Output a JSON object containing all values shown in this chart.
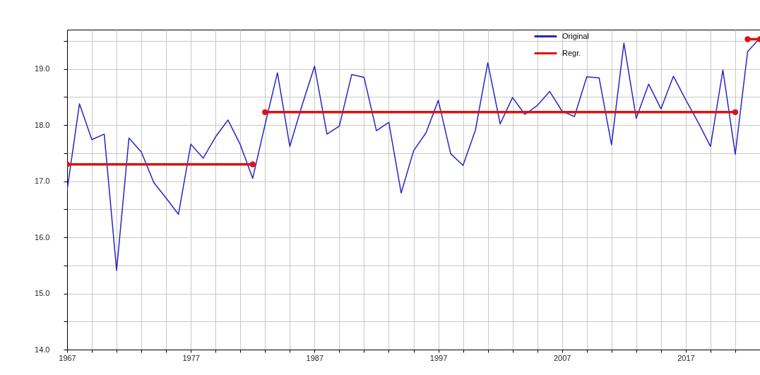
{
  "chart_data": {
    "type": "line",
    "x": [
      1967,
      1968,
      1969,
      1970,
      1971,
      1972,
      1973,
      1974,
      1975,
      1976,
      1977,
      1978,
      1979,
      1980,
      1981,
      1982,
      1983,
      1984,
      1985,
      1986,
      1987,
      1988,
      1989,
      1990,
      1991,
      1992,
      1993,
      1994,
      1995,
      1996,
      1997,
      1998,
      1999,
      2000,
      2001,
      2002,
      2003,
      2004,
      2005,
      2006,
      2007,
      2008,
      2009,
      2010,
      2011,
      2012,
      2013,
      2014,
      2015,
      2016,
      2017,
      2018,
      2019,
      2020,
      2021,
      2022,
      2023
    ],
    "series": [
      {
        "name": "Original",
        "color": "#2626c8",
        "values": [
          16.84,
          18.38,
          17.74,
          17.84,
          15.41,
          17.77,
          17.52,
          16.98,
          16.7,
          16.41,
          17.66,
          17.41,
          17.79,
          18.09,
          17.65,
          17.05,
          18.01,
          18.93,
          17.62,
          18.36,
          19.05,
          17.84,
          17.98,
          18.9,
          18.85,
          17.9,
          18.05,
          16.79,
          17.54,
          17.86,
          18.44,
          17.49,
          17.28,
          17.91,
          19.11,
          18.02,
          18.49,
          18.19,
          18.35,
          18.6,
          18.25,
          18.15,
          18.86,
          18.84,
          17.65,
          19.46,
          18.12,
          18.73,
          18.29,
          18.87,
          18.45,
          18.05,
          17.62,
          18.98,
          17.48,
          19.31,
          19.55
        ]
      },
      {
        "name": "Regr.",
        "color": "#e01010",
        "type": "line",
        "marker": "circle",
        "x": [
          1967,
          1982,
          1982.5,
          1983,
          2021,
          2021.5,
          2022,
          2023
        ],
        "values": [
          17.3,
          17.3,
          null,
          18.23,
          18.23,
          null,
          19.53,
          19.53
        ]
      }
    ],
    "xlim": [
      1967,
      2023
    ],
    "xticks": [
      1967,
      {
        "value": 1969,
        "label": null
      },
      {
        "value": 1971,
        "label": null
      },
      {
        "value": 1973,
        "label": null
      },
      {
        "value": 1975,
        "label": null
      },
      1977,
      {
        "value": 1979,
        "label": null
      },
      {
        "value": 1981,
        "label": null
      },
      {
        "value": 1983,
        "label": null
      },
      {
        "value": 1985,
        "label": null
      },
      1987,
      {
        "value": 1989,
        "label": null
      },
      {
        "value": 1991,
        "label": null
      },
      {
        "value": 1993,
        "label": null
      },
      {
        "value": 1995,
        "label": null
      },
      1997,
      {
        "value": 1999,
        "label": null
      },
      {
        "value": 2001,
        "label": null
      },
      {
        "value": 2003,
        "label": null
      },
      {
        "value": 2005,
        "label": null
      },
      2007,
      {
        "value": 2009,
        "label": null
      },
      {
        "value": 2011,
        "label": null
      },
      {
        "value": 2013,
        "label": null
      },
      {
        "value": 2015,
        "label": null
      },
      2017,
      {
        "value": 2019,
        "label": null
      },
      {
        "value": 2021,
        "label": null
      }
    ],
    "ylim": [
      14,
      19.7
    ],
    "yticks": [
      {
        "value": 14,
        "label": "14.0"
      },
      {
        "value": 14.5,
        "label": null
      },
      {
        "value": 15,
        "label": "15.0"
      },
      {
        "value": 15.5,
        "label": null
      },
      {
        "value": 16,
        "label": "16.0"
      },
      {
        "value": 16.5,
        "label": null
      },
      {
        "value": 17,
        "label": "17.0"
      },
      {
        "value": 17.5,
        "label": null
      },
      {
        "value": 18,
        "label": "18.0"
      },
      {
        "value": 18.5,
        "label": null
      },
      {
        "value": 19,
        "label": "19.0"
      },
      {
        "value": 19.5,
        "label": null
      }
    ],
    "grid": true,
    "legend": "top right"
  }
}
